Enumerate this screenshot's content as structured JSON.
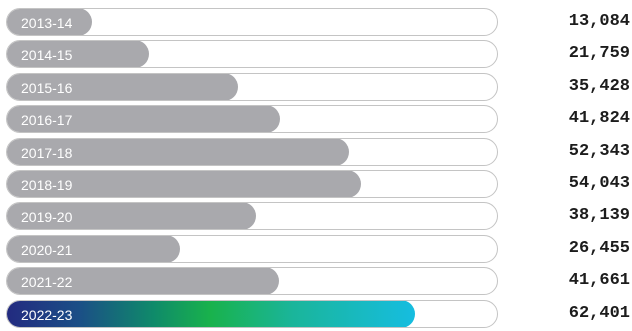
{
  "chart_data": {
    "type": "bar",
    "orientation": "horizontal",
    "categories": [
      "2013-14",
      "2014-15",
      "2015-16",
      "2016-17",
      "2017-18",
      "2018-19",
      "2019-20",
      "2020-21",
      "2021-22",
      "2022-23"
    ],
    "values": [
      13084,
      21759,
      35428,
      41824,
      52343,
      54043,
      38139,
      26455,
      41661,
      62401
    ],
    "value_labels": [
      "13,084",
      "21,759",
      "35,428",
      "41,824",
      "52,343",
      "54,043",
      "38,139",
      "26,455",
      "41,661",
      "62,401"
    ],
    "xlim": [
      0,
      75000
    ],
    "highlight_category": "2022-23",
    "grid": false,
    "legend": "none"
  },
  "colors": {
    "bar": "#a9a9ad",
    "track_border": "#c4c4c4",
    "highlight_gradient": [
      "#232a80",
      "#19b24c",
      "#16bde0"
    ],
    "value_text": "#1c1c1c",
    "label_text": "#ffffff"
  }
}
